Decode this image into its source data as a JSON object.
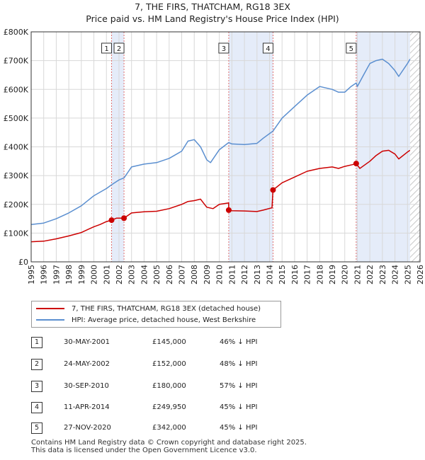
{
  "title_line1": "7, THE FIRS, THATCHAM, RG18 3EX",
  "title_line2": "Price paid vs. HM Land Registry's House Price Index (HPI)",
  "colors": {
    "red": "#cc0000",
    "blue": "#5b8fd0",
    "shade": "#e5ecf9",
    "grid": "#d8d8d8",
    "vline": "#e07070"
  },
  "chart_data": {
    "type": "line",
    "xlim": [
      1995,
      2026
    ],
    "ylim": [
      0,
      800000
    ],
    "yticks": [
      0,
      100000,
      200000,
      300000,
      400000,
      500000,
      600000,
      700000,
      800000
    ],
    "ytick_labels": [
      "£0",
      "£100K",
      "£200K",
      "£300K",
      "£400K",
      "£500K",
      "£600K",
      "£700K",
      "£800K"
    ],
    "xticks": [
      1995,
      1996,
      1997,
      1998,
      1999,
      2000,
      2001,
      2002,
      2003,
      2004,
      2005,
      2006,
      2007,
      2008,
      2009,
      2010,
      2011,
      2012,
      2013,
      2014,
      2015,
      2016,
      2017,
      2018,
      2019,
      2020,
      2021,
      2022,
      2023,
      2024,
      2025,
      2026
    ],
    "shaded_ranges": [
      [
        2001.41,
        2002.4
      ],
      [
        2010.75,
        2014.28
      ],
      [
        2020.91,
        2025.2
      ]
    ],
    "future_hatch_from": 2025.2,
    "series": [
      {
        "name": "7, THE FIRS, THATCHAM, RG18 3EX (detached house)",
        "color": "#cc0000",
        "x": [
          1995,
          1996,
          1997,
          1998,
          1999,
          2000,
          2000.5,
          2001,
          2001.41,
          2001.8,
          2002.4,
          2003,
          2004,
          2005,
          2006,
          2007,
          2007.5,
          2008,
          2008.5,
          2009,
          2009.5,
          2010,
          2010.74,
          2010.75,
          2011,
          2012,
          2013,
          2013.5,
          2014.2,
          2014.28,
          2015,
          2016,
          2017,
          2018,
          2019,
          2019.5,
          2020,
          2020.6,
          2020.91,
          2021.2,
          2022,
          2022.5,
          2023,
          2023.5,
          2024,
          2024.3,
          2025,
          2025.2
        ],
        "values": [
          70000,
          72000,
          80000,
          90000,
          102000,
          122000,
          130000,
          140000,
          145000,
          152000,
          152000,
          170000,
          174000,
          176000,
          185000,
          200000,
          210000,
          213000,
          218000,
          190000,
          185000,
          200000,
          205000,
          180000,
          178000,
          177000,
          175000,
          180000,
          188000,
          249950,
          275000,
          295000,
          315000,
          325000,
          330000,
          325000,
          332000,
          338000,
          342000,
          325000,
          350000,
          370000,
          385000,
          388000,
          375000,
          358000,
          382000,
          388000
        ]
      },
      {
        "name": "HPI: Average price, detached house, West Berkshire",
        "color": "#5b8fd0",
        "x": [
          1995,
          1996,
          1997,
          1998,
          1999,
          2000,
          2001,
          2001.41,
          2002,
          2002.4,
          2003,
          2004,
          2005,
          2006,
          2007,
          2007.5,
          2008,
          2008.5,
          2009,
          2009.3,
          2010,
          2010.75,
          2011,
          2012,
          2013,
          2013.5,
          2014.28,
          2015,
          2016,
          2017,
          2018,
          2019,
          2019.5,
          2020,
          2020.5,
          2020.91,
          2021,
          2021.5,
          2022,
          2022.5,
          2023,
          2023.5,
          2024,
          2024.3,
          2025,
          2025.2
        ],
        "values": [
          130000,
          135000,
          150000,
          170000,
          195000,
          230000,
          255000,
          268000,
          285000,
          292000,
          330000,
          340000,
          345000,
          360000,
          385000,
          420000,
          425000,
          400000,
          355000,
          345000,
          390000,
          415000,
          410000,
          408000,
          412000,
          430000,
          455000,
          500000,
          540000,
          580000,
          610000,
          600000,
          590000,
          590000,
          610000,
          622000,
          610000,
          650000,
          690000,
          700000,
          705000,
          690000,
          665000,
          645000,
          690000,
          705000
        ]
      }
    ],
    "transactions": [
      {
        "id": "1",
        "x": 2001.41,
        "value": 145000,
        "date": "30-MAY-2001",
        "price": "£145,000",
        "hpi": "46% ↓ HPI"
      },
      {
        "id": "2",
        "x": 2002.4,
        "value": 152000,
        "date": "24-MAY-2002",
        "price": "£152,000",
        "hpi": "48% ↓ HPI"
      },
      {
        "id": "3",
        "x": 2010.75,
        "value": 180000,
        "date": "30-SEP-2010",
        "price": "£180,000",
        "hpi": "57% ↓ HPI"
      },
      {
        "id": "4",
        "x": 2014.28,
        "value": 249950,
        "date": "11-APR-2014",
        "price": "£249,950",
        "hpi": "45% ↓ HPI"
      },
      {
        "id": "5",
        "x": 2020.91,
        "value": 342000,
        "date": "27-NOV-2020",
        "price": "£342,000",
        "hpi": "45% ↓ HPI"
      }
    ]
  },
  "legend": {
    "red_label": "7, THE FIRS, THATCHAM, RG18 3EX (detached house)",
    "blue_label": "HPI: Average price, detached house, West Berkshire"
  },
  "table": [
    {
      "num": "1",
      "date": "30-MAY-2001",
      "price": "£145,000",
      "hpi": "46% ↓ HPI"
    },
    {
      "num": "2",
      "date": "24-MAY-2002",
      "price": "£152,000",
      "hpi": "48% ↓ HPI"
    },
    {
      "num": "3",
      "date": "30-SEP-2010",
      "price": "£180,000",
      "hpi": "57% ↓ HPI"
    },
    {
      "num": "4",
      "date": "11-APR-2014",
      "price": "£249,950",
      "hpi": "45% ↓ HPI"
    },
    {
      "num": "5",
      "date": "27-NOV-2020",
      "price": "£342,000",
      "hpi": "45% ↓ HPI"
    }
  ],
  "footer": {
    "line1": "Contains HM Land Registry data © Crown copyright and database right 2025.",
    "line2": "This data is licensed under the Open Government Licence v3.0."
  }
}
